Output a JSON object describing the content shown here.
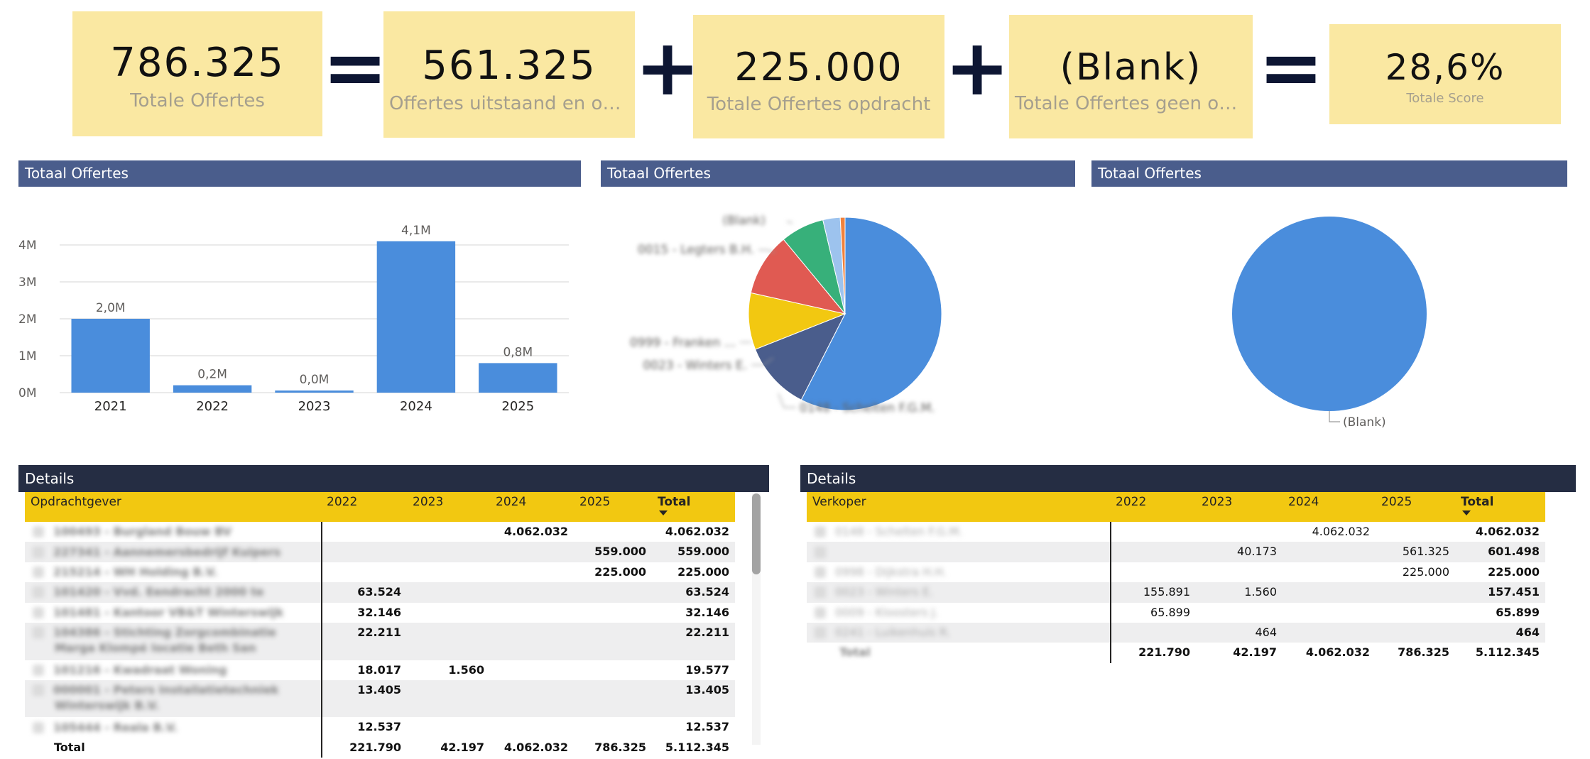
{
  "kpis": [
    {
      "value": "786.325",
      "label": "Totale Offertes"
    },
    {
      "value": "561.325",
      "label": "Offertes uitstaand en ope..."
    },
    {
      "value": "225.000",
      "label": "Totale Offertes opdracht"
    },
    {
      "value": "(Blank)",
      "label": "Totale Offertes geen op..."
    },
    {
      "value": "28,6%",
      "label": "Totale Score"
    }
  ],
  "operators": [
    "=",
    "+",
    "+",
    "="
  ],
  "visuals": {
    "bar_title": "Totaal Offertes",
    "pie1_title": "Totaal Offertes",
    "pie2_title": "Totaal Offertes",
    "table1_title": "Details",
    "table2_title": "Details"
  },
  "colors": {
    "kpi_bg": "#fae8a2",
    "header_blue": "#4a5d8c",
    "header_dark": "#252d43",
    "table_header": "#f2c811",
    "bar": "#4a8ddc"
  },
  "chart_data": [
    {
      "type": "bar",
      "title": "Totaal Offertes",
      "categories": [
        "2021",
        "2022",
        "2023",
        "2024",
        "2025"
      ],
      "values": [
        2.0,
        0.2,
        0.0,
        4.1,
        0.8
      ],
      "data_labels": [
        "2,0M",
        "0,2M",
        "0,0M",
        "4,1M",
        "0,8M"
      ],
      "yticks": [
        "0M",
        "1M",
        "2M",
        "3M",
        "4M"
      ],
      "ylim": [
        0,
        4.5
      ],
      "grid": true
    },
    {
      "type": "pie",
      "title": "Totaal Offertes",
      "slices": [
        {
          "label": "0148 - Schelten F.G.M.",
          "value": 57.5,
          "color": "#4a8ddc"
        },
        {
          "label": "0023 - Winters E.",
          "value": 11.5,
          "color": "#4a5d8c"
        },
        {
          "label": "",
          "value": 9.5,
          "color": "#f2c811"
        },
        {
          "label": "0999 - Franken ...",
          "value": 10.5,
          "color": "#e05a52"
        },
        {
          "label": "0015 - Legters B.H.",
          "value": 7.3,
          "color": "#37b07a"
        },
        {
          "label": "",
          "value": 2.9,
          "color": "#9dc3ee"
        },
        {
          "label": "(Blank)",
          "value": 0.8,
          "color": "#f0823c"
        }
      ]
    },
    {
      "type": "pie",
      "title": "Totaal Offertes",
      "slices": [
        {
          "label": "(Blank)",
          "value": 100,
          "color": "#4a8ddc"
        }
      ]
    }
  ],
  "table1": {
    "columns": [
      "Opdrachtgever",
      "2022",
      "2023",
      "2024",
      "2025",
      "Total"
    ],
    "rows": [
      {
        "name": "100493 - Burgland Bouw BV",
        "c2022": "",
        "c2023": "",
        "c2024": "4.062.032",
        "c2025": "",
        "total": "4.062.032"
      },
      {
        "name": "227341 - Aannemersbedrijf Kuipers",
        "c2022": "",
        "c2023": "",
        "c2024": "",
        "c2025": "559.000",
        "total": "559.000"
      },
      {
        "name": "215214 - WH Holding B.V.",
        "c2022": "",
        "c2023": "",
        "c2024": "",
        "c2025": "225.000",
        "total": "225.000"
      },
      {
        "name": "101420 - Vvd. Eendracht 2000 te",
        "c2022": "63.524",
        "c2023": "",
        "c2024": "",
        "c2025": "",
        "total": "63.524"
      },
      {
        "name": "101481 - Kantoor VB&T Winterswijk",
        "c2022": "32.146",
        "c2023": "",
        "c2024": "",
        "c2025": "",
        "total": "32.146"
      },
      {
        "name": "104386 - Stichting Zorgcombinatie",
        "name2": "Marga Klompé locatie Beth San",
        "c2022": "22.211",
        "c2023": "",
        "c2024": "",
        "c2025": "",
        "total": "22.211"
      },
      {
        "name": "101216 - Kwadraat Woning",
        "c2022": "18.017",
        "c2023": "1.560",
        "c2024": "",
        "c2025": "",
        "total": "19.577"
      },
      {
        "name": "000001 - Peters Installatietechniek",
        "name2": "Winterswijk B.V.",
        "c2022": "13.405",
        "c2023": "",
        "c2024": "",
        "c2025": "",
        "total": "13.405"
      },
      {
        "name": "105444 - Reala B.V.",
        "c2022": "12.537",
        "c2023": "",
        "c2024": "",
        "c2025": "",
        "total": "12.537"
      }
    ],
    "total": {
      "label": "Total",
      "c2022": "221.790",
      "c2023": "42.197",
      "c2024": "4.062.032",
      "c2025": "786.325",
      "total": "5.112.345"
    }
  },
  "table2": {
    "columns": [
      "Verkoper",
      "2022",
      "2023",
      "2024",
      "2025",
      "Total"
    ],
    "rows": [
      {
        "name": "0148 - Schelten F.G.M.",
        "c2022": "",
        "c2023": "",
        "c2024": "4.062.032",
        "c2025": "",
        "total": "4.062.032"
      },
      {
        "name": "",
        "c2022": "",
        "c2023": "40.173",
        "c2024": "",
        "c2025": "561.325",
        "total": "601.498"
      },
      {
        "name": "0998 - Dijkstra H.H.",
        "c2022": "",
        "c2023": "",
        "c2024": "",
        "c2025": "225.000",
        "total": "225.000"
      },
      {
        "name": "0023 - Winters E.",
        "c2022": "155.891",
        "c2023": "1.560",
        "c2024": "",
        "c2025": "",
        "total": "157.451"
      },
      {
        "name": "0009 - Kloosters J.",
        "c2022": "65.899",
        "c2023": "",
        "c2024": "",
        "c2025": "",
        "total": "65.899"
      },
      {
        "name": "0241 - Luikenhuis R.",
        "c2022": "",
        "c2023": "464",
        "c2024": "",
        "c2025": "",
        "total": "464"
      }
    ],
    "total": {
      "label": "Total",
      "c2022": "221.790",
      "c2023": "42.197",
      "c2024": "4.062.032",
      "c2025": "786.325",
      "total": "5.112.345"
    }
  }
}
